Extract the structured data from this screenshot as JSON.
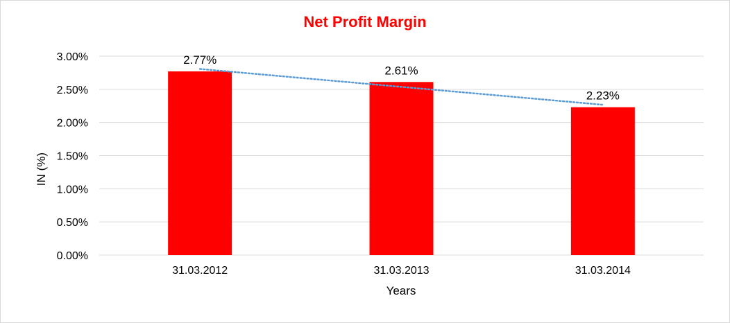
{
  "chart_data": {
    "type": "bar",
    "title": "Net Profit Margin",
    "xlabel": "Years",
    "ylabel": "IN (%)",
    "categories": [
      "31.03.2012",
      "31.03.2013",
      "31.03.2014"
    ],
    "values": [
      2.77,
      2.61,
      2.23
    ],
    "data_labels": [
      "2.77%",
      "2.61%",
      "2.23%"
    ],
    "ylim": [
      0,
      3
    ],
    "y_ticks": [
      0,
      0.5,
      1,
      1.5,
      2,
      2.5,
      3
    ],
    "y_tick_labels": [
      "0.00%",
      "0.50%",
      "1.00%",
      "1.50%",
      "2.00%",
      "2.50%",
      "3.00%"
    ],
    "grid": true,
    "legend": "none",
    "trendline": {
      "type": "linear",
      "style": "dotted",
      "color": "#5b9bd5"
    },
    "colors": {
      "bar": "#ff0000",
      "title": "#ff0000",
      "grid": "#d9d9d9"
    }
  }
}
